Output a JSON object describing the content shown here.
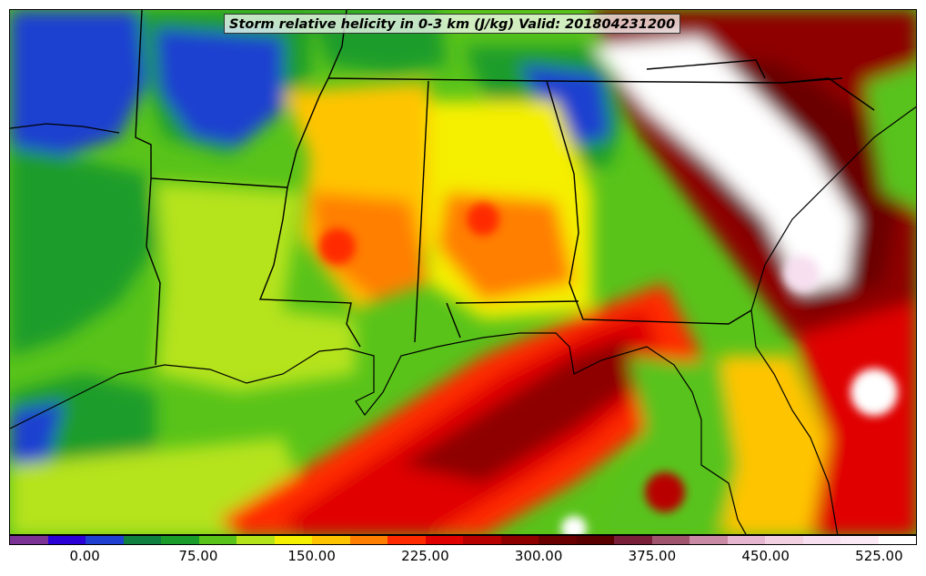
{
  "title": "Storm relative helicity in 0-3 km (J/kg) Valid: 201804231200",
  "colorbar": {
    "levels": [
      -50,
      -25,
      0,
      25,
      50,
      75,
      100,
      125,
      150,
      175,
      200,
      225,
      250,
      275,
      300,
      325,
      350,
      375,
      400,
      425,
      450,
      475,
      500,
      525,
      550
    ],
    "colors": [
      "#7b3294",
      "#2b00d6",
      "#1f3fd0",
      "#0f7f3f",
      "#1a9c2a",
      "#59c31a",
      "#b5e31a",
      "#f5ef00",
      "#ffc400",
      "#ff7f00",
      "#ff2a00",
      "#e00000",
      "#b80000",
      "#8e0000",
      "#6a0000",
      "#5a0000",
      "#7a1f3a",
      "#a0546e",
      "#c98aa6",
      "#e6b6d0",
      "#f2d0e2",
      "#f7dff0",
      "#fbeaf6",
      "#ffffff"
    ],
    "tick_labels": [
      "0.00",
      "75.00",
      "150.00",
      "225.00",
      "300.00",
      "375.00",
      "450.00",
      "525.00"
    ],
    "tick_values": [
      0,
      75,
      150,
      225,
      300,
      375,
      450,
      525
    ]
  }
}
